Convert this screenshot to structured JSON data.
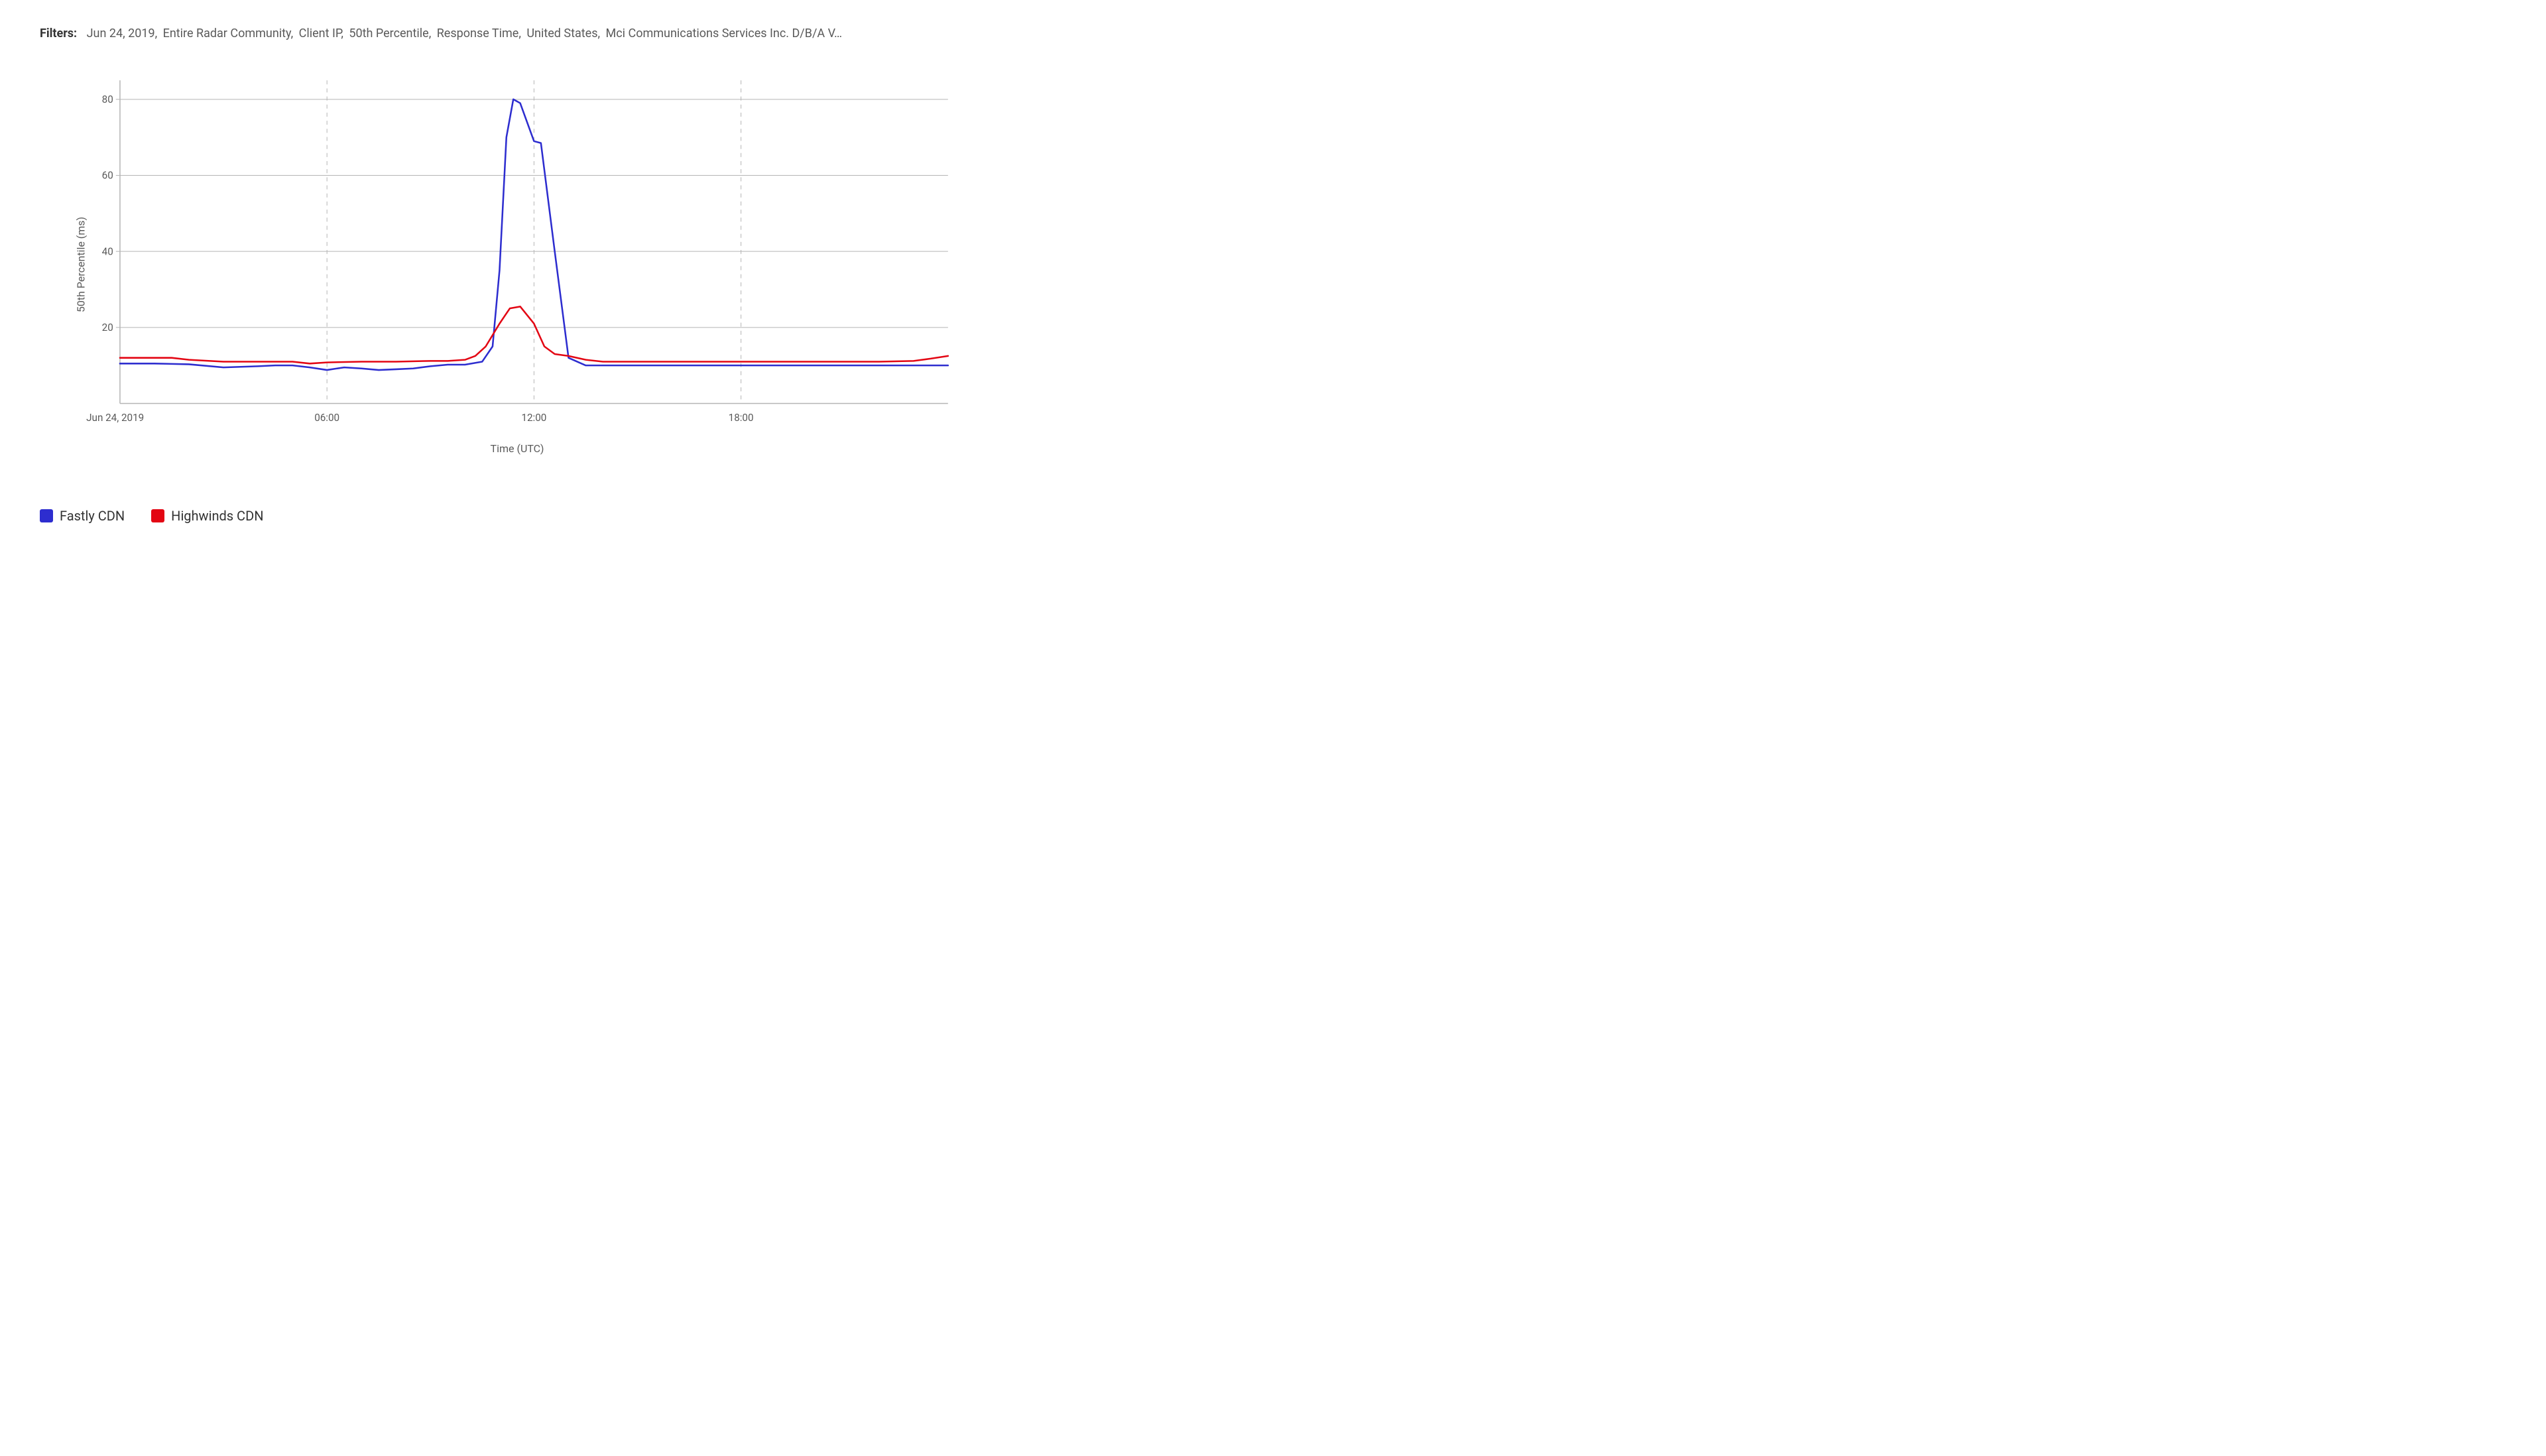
{
  "filters": {
    "label": "Filters:",
    "items": [
      "Jun 24, 2019,",
      "Entire Radar Community,",
      "Client IP,",
      "50th Percentile,",
      "Response Time,",
      "United States,",
      "Mci Communications Services Inc. D/B/A V…"
    ]
  },
  "chart": {
    "type": "line",
    "background_color": "#ffffff",
    "plot_border_color": "#b5b5b5",
    "grid_color": "#b5b5b5",
    "grid_dash_color": "#b5b5b5",
    "y_axis": {
      "label": "50th Percentile (ms)",
      "min": 0,
      "max": 85,
      "ticks": [
        20,
        40,
        60,
        80
      ],
      "label_fontsize": 16,
      "tick_fontsize": 15
    },
    "x_axis": {
      "label": "Time (UTC)",
      "min": 0,
      "max": 24,
      "ticks": [
        {
          "v": 0,
          "label": "Jun 24, 2019"
        },
        {
          "v": 6,
          "label": "06:00"
        },
        {
          "v": 12,
          "label": "12:00"
        },
        {
          "v": 18,
          "label": "18:00"
        }
      ],
      "vgrid_at": [
        6,
        12,
        18
      ],
      "label_fontsize": 16,
      "tick_fontsize": 15
    },
    "line_width": 2.5,
    "series": [
      {
        "name": "Fastly CDN",
        "color": "#2d2dcf",
        "points": [
          [
            0,
            10.5
          ],
          [
            1,
            10.5
          ],
          [
            2,
            10.3
          ],
          [
            3,
            9.5
          ],
          [
            4,
            9.8
          ],
          [
            4.5,
            10.0
          ],
          [
            5,
            10.0
          ],
          [
            5.5,
            9.5
          ],
          [
            6,
            8.8
          ],
          [
            6.5,
            9.5
          ],
          [
            7,
            9.2
          ],
          [
            7.5,
            8.8
          ],
          [
            8,
            9.0
          ],
          [
            8.5,
            9.2
          ],
          [
            9,
            9.8
          ],
          [
            9.5,
            10.2
          ],
          [
            10,
            10.2
          ],
          [
            10.5,
            11.0
          ],
          [
            10.8,
            15.0
          ],
          [
            11,
            35.0
          ],
          [
            11.2,
            70.0
          ],
          [
            11.4,
            80.0
          ],
          [
            11.6,
            79.0
          ],
          [
            12,
            69.0
          ],
          [
            12.2,
            68.5
          ],
          [
            12.6,
            40.0
          ],
          [
            13,
            12.0
          ],
          [
            13.5,
            10.0
          ],
          [
            14,
            10.0
          ],
          [
            15,
            10.0
          ],
          [
            16,
            10.0
          ],
          [
            17,
            10.0
          ],
          [
            18,
            10.0
          ],
          [
            19,
            10.0
          ],
          [
            20,
            10.0
          ],
          [
            21,
            10.0
          ],
          [
            22,
            10.0
          ],
          [
            23,
            10.0
          ],
          [
            24,
            10.0
          ]
        ]
      },
      {
        "name": "Highwinds CDN",
        "color": "#e30613",
        "points": [
          [
            0,
            12.0
          ],
          [
            1,
            12.0
          ],
          [
            1.5,
            12.0
          ],
          [
            2,
            11.5
          ],
          [
            3,
            11.0
          ],
          [
            4,
            11.0
          ],
          [
            5,
            11.0
          ],
          [
            5.5,
            10.5
          ],
          [
            6,
            10.8
          ],
          [
            7,
            11.0
          ],
          [
            8,
            11.0
          ],
          [
            9,
            11.2
          ],
          [
            9.5,
            11.2
          ],
          [
            10,
            11.5
          ],
          [
            10.3,
            12.5
          ],
          [
            10.6,
            15.0
          ],
          [
            11,
            21.0
          ],
          [
            11.3,
            25.0
          ],
          [
            11.6,
            25.5
          ],
          [
            12,
            21.0
          ],
          [
            12.3,
            15.0
          ],
          [
            12.6,
            13.0
          ],
          [
            13,
            12.5
          ],
          [
            13.5,
            11.5
          ],
          [
            14,
            11.0
          ],
          [
            15,
            11.0
          ],
          [
            16,
            11.0
          ],
          [
            17,
            11.0
          ],
          [
            18,
            11.0
          ],
          [
            19,
            11.0
          ],
          [
            20,
            11.0
          ],
          [
            21,
            11.0
          ],
          [
            22,
            11.0
          ],
          [
            23,
            11.2
          ],
          [
            23.5,
            11.8
          ],
          [
            24,
            12.5
          ]
        ]
      }
    ]
  },
  "legend": {
    "items": [
      {
        "label": "Fastly CDN",
        "color": "#2d2dcf"
      },
      {
        "label": "Highwinds CDN",
        "color": "#e30613"
      }
    ],
    "swatch_radius": 3
  }
}
